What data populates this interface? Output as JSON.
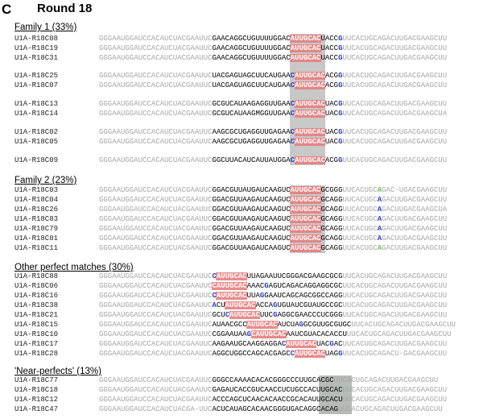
{
  "panel": {
    "letter": "C",
    "title": "Round 18"
  },
  "sections": [
    {
      "label": "Family 1 (33%)",
      "sequences": [
        {
          "name": "U1A-R18C08",
          "segments": [
            [
              "c",
              "GGGAAUGGAUCCACAUCUACGAAUUC"
            ],
            [
              "v",
              "GAACAGGCUGUUUUGGAC"
            ],
            [
              "r",
              "AUUGCAC"
            ],
            [
              "v",
              "UACC"
            ],
            [
              "b",
              "G"
            ],
            [
              "c",
              "UUCACUGCAGACUUGACGAAGCUU"
            ]
          ]
        },
        {
          "name": "U1A-R18C19",
          "segments": [
            [
              "c",
              "GGGAAUGGAUCCACAUCUACGAAUUC"
            ],
            [
              "v",
              "GAACAGGCUGUUUUGGAC"
            ],
            [
              "r",
              "AUUGCAC"
            ],
            [
              "v",
              "UACC"
            ],
            [
              "b",
              "G"
            ],
            [
              "c",
              "UUCACUGCAGACUUGACGAAGCUU"
            ]
          ]
        },
        {
          "name": "U1A-R18C31",
          "segments": [
            [
              "c",
              "GGGAAUGGAUCCACAUCUACGAAUUC"
            ],
            [
              "v",
              "GAACAGGCUGUUUUGGAC"
            ],
            [
              "r",
              "AUUGCAC"
            ],
            [
              "v",
              "UACC"
            ],
            [
              "b",
              "G"
            ],
            [
              "c",
              "UUCACUGCAGACUUGACGAAGCUU"
            ]
          ]
        },
        {
          "name": "U1A-R18C25",
          "segments": [
            [
              "c",
              "GGGAAUGGAUCCACAUCUACGAAUUC"
            ],
            [
              "v",
              "UACGAGUAGCUUCAUGAA"
            ],
            [
              "b",
              "C"
            ],
            [
              "r",
              "AUUGCAC"
            ],
            [
              "v",
              "ACG"
            ],
            [
              "b",
              "G"
            ],
            [
              "c",
              "UUCACUGCAGACUUGACGAAGCUU"
            ]
          ]
        },
        {
          "name": "U1A-R18C07",
          "segments": [
            [
              "c",
              "GGGAAUGGAUCCACAUCUACGAAUUC"
            ],
            [
              "v",
              "UACGAGUAGCUUCAUGAA"
            ],
            [
              "b",
              "C"
            ],
            [
              "r",
              "AUUGCAC"
            ],
            [
              "v",
              "ACG"
            ],
            [
              "b",
              "G"
            ],
            [
              "c",
              "UUCACUGCAGACUUGACGAAGCUU"
            ]
          ]
        },
        {
          "name": "U1A-R18C13",
          "segments": [
            [
              "c",
              "GGGAAUGGAUCCACAUCUACGAAUUC"
            ],
            [
              "v",
              "GCGUCAUAAGAGGUUGAA"
            ],
            [
              "b",
              "C"
            ],
            [
              "r",
              "AUUGCAC"
            ],
            [
              "v",
              "UAC"
            ],
            [
              "b",
              "G"
            ],
            [
              "c",
              "UUCACUGCAGACUUGACGAAGCUU"
            ]
          ]
        },
        {
          "name": "U1A-R18C14",
          "segments": [
            [
              "c",
              "GGGAAUGGAUCCACAUCUACGAAUUC"
            ],
            [
              "v",
              "GCGUCAUAAGMGGUUGAA"
            ],
            [
              "b",
              "C"
            ],
            [
              "r",
              "AUUGCAC"
            ],
            [
              "v",
              "UAC"
            ],
            [
              "b",
              "G"
            ],
            [
              "c",
              "UUCACUGCAGACUUGACGAAGCUA"
            ]
          ]
        },
        {
          "name": "U1A-R18C02",
          "segments": [
            [
              "c",
              "GGGAAUGGAUCCACAUCUACGAAUUC"
            ],
            [
              "v",
              "AAGCGCUGAGGUUGAGAA"
            ],
            [
              "b",
              "C"
            ],
            [
              "r",
              "AUUGCAC"
            ],
            [
              "v",
              "UAC"
            ],
            [
              "b",
              "G"
            ],
            [
              "c",
              "UUCACUGCAGACUUGACGAAGCUU"
            ]
          ]
        },
        {
          "name": "U1A-R18C05",
          "segments": [
            [
              "c",
              "GGGAAUGGAUCCACAUCUACGAAUUC"
            ],
            [
              "v",
              "AAGCGCUGAGGUUGAGAA"
            ],
            [
              "b",
              "C"
            ],
            [
              "r",
              "AUUGCAC"
            ],
            [
              "v",
              "UAC"
            ],
            [
              "b",
              "G"
            ],
            [
              "c",
              "UUCACUGCAGACUUGACGAAGCUU"
            ]
          ]
        },
        {
          "name": "U1A-R18C09",
          "segments": [
            [
              "c",
              "GGGAAUGGAUCCACAUCUACGAAUUC"
            ],
            [
              "v",
              "GGCUUACAUCAUUAUGGA"
            ],
            [
              "b",
              "C"
            ],
            [
              "r",
              "AUUGCAC"
            ],
            [
              "v",
              "ACG"
            ],
            [
              "b",
              "G"
            ],
            [
              "c",
              "UUCACUGCAGACUUGACGAAGCUU"
            ]
          ]
        }
      ]
    },
    {
      "label": "Family 2 (23%)",
      "sequences": [
        {
          "name": "U1A-R18C03",
          "segments": [
            [
              "c",
              "GGGAAUGGAUCCACAUCUACGAAUUC"
            ],
            [
              "v",
              "GGACGUUAUGAUCAAGUC"
            ],
            [
              "r",
              "AUUGCAC"
            ],
            [
              "v",
              "GCGGG"
            ],
            [
              "c",
              "UUCACUGC"
            ],
            [
              "g",
              "A"
            ],
            [
              "c",
              "GAC-UGACGAAGCUU"
            ]
          ]
        },
        {
          "name": "U1A-R18C04",
          "segments": [
            [
              "c",
              "GGGAAUGGAUCCACAUCUACGAAUUC"
            ],
            [
              "v",
              "GGACGUUAAGAUCAAGUC"
            ],
            [
              "r",
              "AUUGCAC"
            ],
            [
              "v",
              "GCAGG"
            ],
            [
              "c",
              "UUCACUGC"
            ],
            [
              "b",
              "A"
            ],
            [
              "c",
              "GACUUGACGAAGCUU"
            ]
          ]
        },
        {
          "name": "U1A-R18C26",
          "segments": [
            [
              "c",
              "GGGAAUGGAUCCACAUCUACGAAUUC"
            ],
            [
              "v",
              "GGACGUUAAGAUCAAGUC"
            ],
            [
              "r",
              "AUUGCAC"
            ],
            [
              "v",
              "GCAGG"
            ],
            [
              "c",
              "UUCACUGC"
            ],
            [
              "b",
              "A"
            ],
            [
              "c",
              "GACUUGACGAAGCUA"
            ]
          ]
        },
        {
          "name": "U1A-R18C83",
          "segments": [
            [
              "c",
              "GGGAAUGGAUCCACAUCUACGAAUUC"
            ],
            [
              "v",
              "GGACGUUAAGAUCAAGUC"
            ],
            [
              "r",
              "AUUGCAC"
            ],
            [
              "v",
              "GCAGG"
            ],
            [
              "c",
              "UUCACUGC"
            ],
            [
              "b",
              "A"
            ],
            [
              "c",
              "GACUUGACGAAGCUU"
            ]
          ]
        },
        {
          "name": "U1A-R18C79",
          "segments": [
            [
              "c",
              "GGGAAUGGAUCCACAUCUACGAAUUC"
            ],
            [
              "v",
              "GGACGUUAAGAUCAAGUC"
            ],
            [
              "r",
              "AUUGCAC"
            ],
            [
              "v",
              "GCAGG"
            ],
            [
              "c",
              "UUCACUGC"
            ],
            [
              "b",
              "A"
            ],
            [
              "c",
              "GACUUGACGAAGCUU"
            ]
          ]
        },
        {
          "name": "U1A-R18C01",
          "segments": [
            [
              "c",
              "GGGAAUGGAUCCACAUCUACGAAUUC"
            ],
            [
              "v",
              "GGACGUUAAGAUCAAGUC"
            ],
            [
              "r",
              "AUUGCAC"
            ],
            [
              "v",
              "GCAGG"
            ],
            [
              "c",
              "UUCACUGC"
            ],
            [
              "b",
              "A"
            ],
            [
              "c",
              "GACUUGACGAAGCUU"
            ]
          ]
        },
        {
          "name": "U1A-R18C11",
          "segments": [
            [
              "c",
              "GGGAAUGGAUCCACAUCUACGAAUUC"
            ],
            [
              "v",
              "GGACGUUAAGAUCAAGUC"
            ],
            [
              "r",
              "AUUGCAC"
            ],
            [
              "v",
              "GCAGG"
            ],
            [
              "c",
              "UUCACUGC"
            ],
            [
              "g",
              "A"
            ],
            [
              "c",
              "GACUUGACGAAGCUU"
            ]
          ]
        }
      ]
    },
    {
      "label": "Other perfect matches (30%)",
      "sequences": [
        {
          "name": "U1A-R18C88",
          "segments": [
            [
              "c",
              "GGGAAUGGAUCCACAUCUACGAAUUC"
            ],
            [
              "b",
              "C"
            ],
            [
              "r",
              "AUUGCAC"
            ],
            [
              "v",
              "UUAGAAUUCGGGACGAAGCGCG"
            ],
            [
              "c",
              "UUCACUGCAGACUUGACGAAGCUU"
            ]
          ]
        },
        {
          "name": "U1A-R18C06",
          "segments": [
            [
              "c",
              "GGGAAUGGAUCCACAUCUACGAAUUC"
            ],
            [
              "r",
              "CAUUGCAC"
            ],
            [
              "v",
              "AAAC"
            ],
            [
              "b",
              "G"
            ],
            [
              "v",
              "AGUCAGACAGGAGGCGC"
            ],
            [
              "c",
              "UUCACUGCAGACUUGACGAAGCUU"
            ]
          ]
        },
        {
          "name": "U1A-R18C16",
          "segments": [
            [
              "c",
              "GGGAAUGGAUCCACAUCUACGAAUUC"
            ],
            [
              "b",
              "C"
            ],
            [
              "r",
              "AUUGCAC"
            ],
            [
              "v",
              "UUA"
            ],
            [
              "b",
              "G"
            ],
            [
              "v",
              "GAAUCAGCAGCGGCCAGG"
            ],
            [
              "c",
              "UUCACUGCAGACUUGACGAAGCUU"
            ]
          ]
        },
        {
          "name": "U1A-R18C38",
          "segments": [
            [
              "c",
              "GGGAAUGGAUCCACAUCUACGAAUUC"
            ],
            [
              "b",
              "A"
            ],
            [
              "v",
              "CU"
            ],
            [
              "r",
              "AUUGCAC"
            ],
            [
              "v",
              "ACCA"
            ],
            [
              "b",
              "G"
            ],
            [
              "v",
              "UGUAUCGUAUGCCGC"
            ],
            [
              "c",
              "UUCACUGCAGACUUGACGAAGCUU"
            ]
          ]
        },
        {
          "name": "U1A-R18C21",
          "segments": [
            [
              "c",
              "GGGAAUGGAUCCACAUCUACGAAUUC"
            ],
            [
              "v",
              "GCU"
            ],
            [
              "b",
              "C"
            ],
            [
              "r",
              "AUUGCAC"
            ],
            [
              "v",
              "UUC"
            ],
            [
              "b",
              "G"
            ],
            [
              "v",
              "AGGCGAACCCUCGGG"
            ],
            [
              "c",
              "UUCACUGCAGACUUGACGAAGCUU"
            ]
          ]
        },
        {
          "name": "U1A-R18C15",
          "segments": [
            [
              "c",
              "GGGAAUGGAUCCACAUCUACGAAUUC"
            ],
            [
              "v",
              "AUAACGCC"
            ],
            [
              "r",
              "AUUGCAC"
            ],
            [
              "v",
              "AUCUA"
            ],
            [
              "b",
              "G"
            ],
            [
              "v",
              "GCGUUGCGUGC"
            ],
            [
              "c",
              "UUCACUGCAGACUUGACGAAGCUU"
            ]
          ]
        },
        {
          "name": "U1A-R18C10",
          "segments": [
            [
              "c",
              "GGGAAUGGAUCCACAUCUACGAAUUC"
            ],
            [
              "v",
              "CGGAAUAA"
            ],
            [
              "b",
              "G"
            ],
            [
              "r",
              "CAUUGCAC"
            ],
            [
              "v",
              "AAUCGUACACACCU"
            ],
            [
              "c",
              "UUCACUGCAGACUUGACGAAGCUU"
            ]
          ]
        },
        {
          "name": "U1A-R18C17",
          "segments": [
            [
              "c",
              "GGGAAUGGAUCCACAUCUACGAAUUC"
            ],
            [
              "v",
              "AAGAAUGCAAGGAGGA"
            ],
            [
              "b",
              "C"
            ],
            [
              "r",
              "AUUGCAC"
            ],
            [
              "v",
              "UAC"
            ],
            [
              "b",
              "G"
            ],
            [
              "v",
              "AC"
            ],
            [
              "c",
              "UUCACUGCAGACUUGACGAAGCUU"
            ]
          ]
        },
        {
          "name": "U1A-R18C28",
          "segments": [
            [
              "c",
              "GGGAAUGGAUCCACAUCUACGAAUUC"
            ],
            [
              "v",
              "AGGCUGGCCAGCACGAGC"
            ],
            [
              "b",
              "C"
            ],
            [
              "r",
              "AUUGCAC"
            ],
            [
              "v",
              "UAG"
            ],
            [
              "b",
              "G"
            ],
            [
              "c",
              "UUCACUGCAGACU-GACGAAGCUU"
            ]
          ]
        }
      ]
    },
    {
      "label": "'Near-perfects' (13%)",
      "sequences": [
        {
          "name": "U1A-R18C77",
          "segments": [
            [
              "c",
              "GGGAAUGGAUCCACAUCUACGAAUUC"
            ],
            [
              "v",
              "GGGCCAAAACACACGGGCCCUUGCACGC"
            ],
            [
              "c",
              "UUCACUGCAGACUUGACGAAGCUU"
            ]
          ]
        },
        {
          "name": "U1A-R18C18",
          "segments": [
            [
              "c",
              "GGGAAUGGAUCCACAUCUACGAAUUC"
            ],
            [
              "v",
              "GAGAUCACCGUCAACCUCUGCCACUUGCAC"
            ],
            [
              "c",
              "UUCACUGCAGACUUGACGAAGCUU"
            ]
          ]
        },
        {
          "name": "U1A-R18C12",
          "segments": [
            [
              "c",
              "GGGAAUGGAUCCACAUCUACGAAUUC"
            ],
            [
              "v",
              "ACCCAGCUCAACACAACCGCACAUUGCACU"
            ],
            [
              "c",
              "UUCACUGCAGACUUGACGAAGCUU"
            ]
          ]
        },
        {
          "name": "U1A-R18C47",
          "segments": [
            [
              "c",
              "GGGAAUGGAUCCACAUCUACGA-UUC"
            ],
            [
              "v",
              "ACUCAUAGCACAACGGGUGACAGGCACAG"
            ],
            [
              "c",
              "UUCACUGCAGACUUGACGAAGCUU"
            ]
          ]
        }
      ]
    }
  ]
}
